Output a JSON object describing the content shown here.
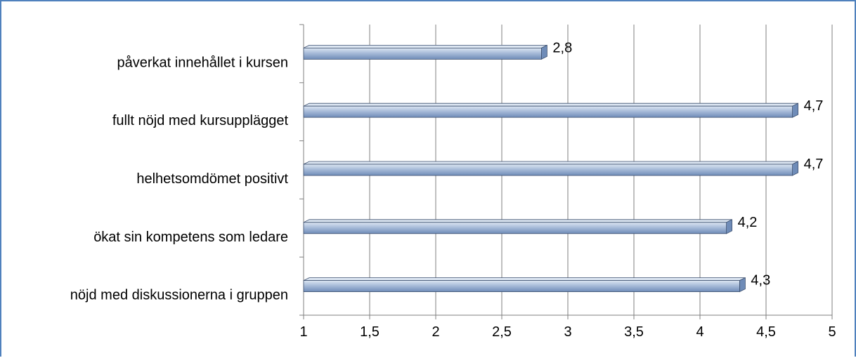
{
  "chart_data": {
    "type": "bar",
    "orientation": "horizontal",
    "categories": [
      "nöjd med diskussionerna i gruppen",
      "ökat sin kompetens som ledare",
      "helhetsomdömet positivt",
      "fullt nöjd med kursupplägget",
      "påverkat innehållet i kursen"
    ],
    "values": [
      4.3,
      4.2,
      4.7,
      4.7,
      2.8
    ],
    "data_labels": [
      "4,3",
      "4,2",
      "4,7",
      "4,7",
      "2,8"
    ],
    "x_ticks": [
      "1",
      "1,5",
      "2",
      "2,5",
      "3",
      "3,5",
      "4",
      "4,5",
      "5"
    ],
    "x_tick_values": [
      1,
      1.5,
      2,
      2.5,
      3,
      3.5,
      4,
      4.5,
      5
    ],
    "xlim": [
      1,
      5
    ],
    "title": "",
    "xlabel": "",
    "ylabel": "",
    "grid": "vertical",
    "legend": "none",
    "colors": {
      "bar_light": "#dce6f2",
      "bar_mid": "#a8bcd9",
      "bar_dark": "#6f8cb8",
      "bar_outline": "#3c4f6e",
      "grid": "#7f7f7f",
      "frame": "#4f81bd"
    }
  }
}
